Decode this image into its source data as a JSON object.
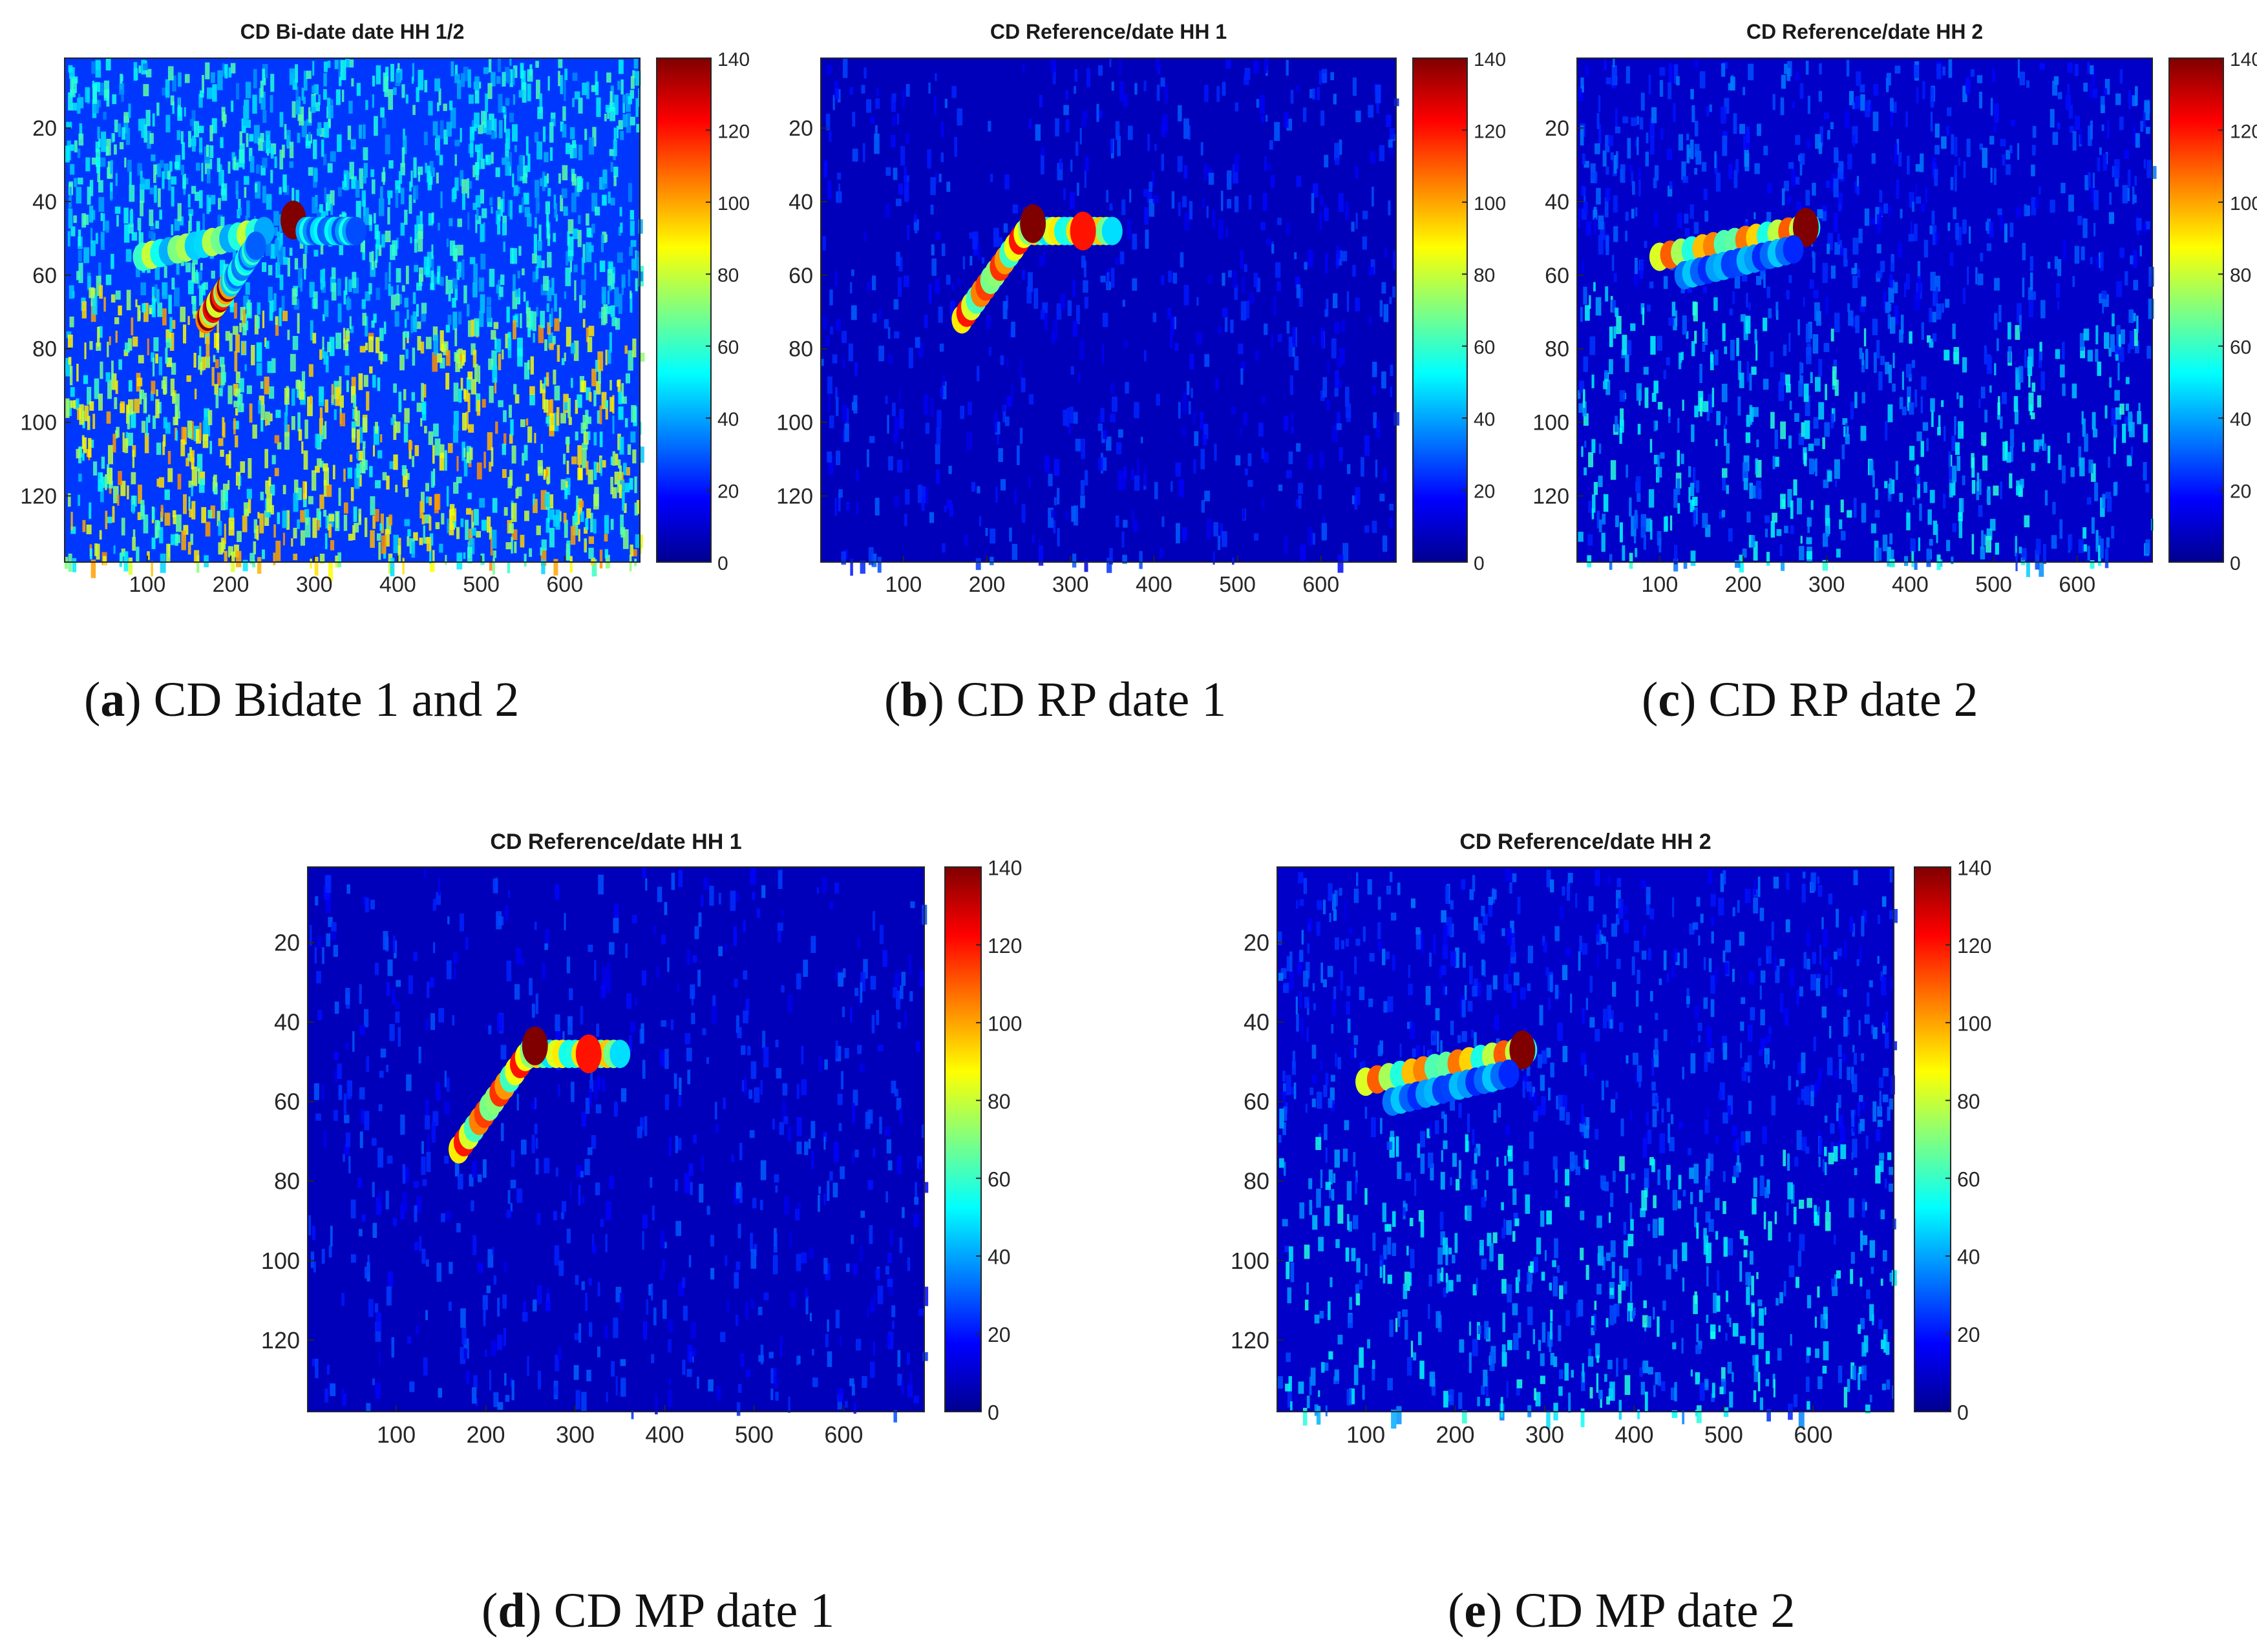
{
  "colorbar_colors": [
    "#00008f",
    "#0000ff",
    "#0080ff",
    "#00ffff",
    "#80ff80",
    "#ffff00",
    "#ff8000",
    "#ff0000",
    "#800000"
  ],
  "chart_data": [
    {
      "type": "heatmap",
      "title": "CD Bi-date date HH 1/2",
      "caption_letter": "a",
      "caption_text": "CD Bidate 1 and 2",
      "xlim": [
        1,
        690
      ],
      "ylim": [
        1,
        138
      ],
      "xticks": [
        100,
        200,
        300,
        400,
        500,
        600
      ],
      "yticks": [
        20,
        40,
        60,
        80,
        100,
        120
      ],
      "colorbar": {
        "range": [
          0,
          140
        ],
        "ticks": [
          "0",
          "20",
          "40",
          "60",
          "80",
          "100",
          "120",
          "140"
        ]
      },
      "background_level": 25,
      "noise": "high",
      "features": [
        {
          "type": "segment",
          "x1": 95,
          "y1": 55,
          "x2": 240,
          "y2": 48,
          "value": 80
        },
        {
          "type": "segment",
          "x1": 170,
          "y1": 72,
          "x2": 200,
          "y2": 62,
          "value": 140
        },
        {
          "type": "segment",
          "x1": 200,
          "y1": 62,
          "x2": 230,
          "y2": 52,
          "value": 60
        },
        {
          "type": "blob",
          "x": 275,
          "y": 45,
          "value": 140
        },
        {
          "type": "segment",
          "x1": 290,
          "y1": 48,
          "x2": 350,
          "y2": 48,
          "value": 55
        }
      ]
    },
    {
      "type": "heatmap",
      "title": "CD Reference/date HH 1",
      "caption_letter": "b",
      "caption_text": "CD RP date 1",
      "xlim": [
        1,
        690
      ],
      "ylim": [
        1,
        138
      ],
      "xticks": [
        100,
        200,
        300,
        400,
        500,
        600
      ],
      "yticks": [
        20,
        40,
        60,
        80,
        100,
        120
      ],
      "colorbar": {
        "range": [
          0,
          140
        ],
        "ticks": [
          "0",
          "20",
          "40",
          "60",
          "80",
          "100",
          "120",
          "140"
        ]
      },
      "background_level": 8,
      "noise": "low",
      "features": [
        {
          "type": "segment",
          "x1": 170,
          "y1": 72,
          "x2": 250,
          "y2": 47,
          "value": 120
        },
        {
          "type": "segment",
          "x1": 250,
          "y1": 48,
          "x2": 350,
          "y2": 48,
          "value": 95
        },
        {
          "type": "blob",
          "x": 255,
          "y": 46,
          "value": 140
        },
        {
          "type": "blob",
          "x": 315,
          "y": 48,
          "value": 120
        }
      ]
    },
    {
      "type": "heatmap",
      "title": "CD Reference/date HH 2",
      "caption_letter": "c",
      "caption_text": "CD RP date 2",
      "xlim": [
        1,
        690
      ],
      "ylim": [
        1,
        138
      ],
      "xticks": [
        100,
        200,
        300,
        400,
        500,
        600
      ],
      "yticks": [
        20,
        40,
        60,
        80,
        100,
        120
      ],
      "colorbar": {
        "range": [
          0,
          140
        ],
        "ticks": [
          "0",
          "20",
          "40",
          "60",
          "80",
          "100",
          "120",
          "140"
        ]
      },
      "background_level": 10,
      "noise": "medium",
      "features": [
        {
          "type": "segment",
          "x1": 100,
          "y1": 55,
          "x2": 280,
          "y2": 47,
          "value": 110
        },
        {
          "type": "blob",
          "x": 275,
          "y": 47,
          "value": 140
        },
        {
          "type": "segment",
          "x1": 130,
          "y1": 60,
          "x2": 260,
          "y2": 53,
          "value": 45
        }
      ]
    },
    {
      "type": "heatmap",
      "title": "CD Reference/date HH 1",
      "caption_letter": "d",
      "caption_text": "CD MP date 1",
      "xlim": [
        1,
        690
      ],
      "ylim": [
        1,
        138
      ],
      "xticks": [
        100,
        200,
        300,
        400,
        500,
        600
      ],
      "yticks": [
        20,
        40,
        60,
        80,
        100,
        120
      ],
      "colorbar": {
        "range": [
          0,
          140
        ],
        "ticks": [
          "0",
          "20",
          "40",
          "60",
          "80",
          "100",
          "120",
          "140"
        ]
      },
      "background_level": 8,
      "noise": "low",
      "features": [
        {
          "type": "segment",
          "x1": 170,
          "y1": 72,
          "x2": 250,
          "y2": 47,
          "value": 120
        },
        {
          "type": "segment",
          "x1": 250,
          "y1": 48,
          "x2": 350,
          "y2": 48,
          "value": 95
        },
        {
          "type": "blob",
          "x": 255,
          "y": 46,
          "value": 140
        },
        {
          "type": "blob",
          "x": 315,
          "y": 48,
          "value": 120
        }
      ]
    },
    {
      "type": "heatmap",
      "title": "CD Reference/date HH 2",
      "caption_letter": "e",
      "caption_text": "CD MP date 2",
      "xlim": [
        1,
        690
      ],
      "ylim": [
        1,
        138
      ],
      "xticks": [
        100,
        200,
        300,
        400,
        500,
        600
      ],
      "yticks": [
        20,
        40,
        60,
        80,
        100,
        120
      ],
      "colorbar": {
        "range": [
          0,
          140
        ],
        "ticks": [
          "0",
          "20",
          "40",
          "60",
          "80",
          "100",
          "120",
          "140"
        ]
      },
      "background_level": 10,
      "noise": "medium",
      "features": [
        {
          "type": "segment",
          "x1": 100,
          "y1": 55,
          "x2": 280,
          "y2": 47,
          "value": 110
        },
        {
          "type": "blob",
          "x": 275,
          "y": 47,
          "value": 140
        },
        {
          "type": "segment",
          "x1": 130,
          "y1": 60,
          "x2": 260,
          "y2": 53,
          "value": 45
        }
      ]
    }
  ]
}
